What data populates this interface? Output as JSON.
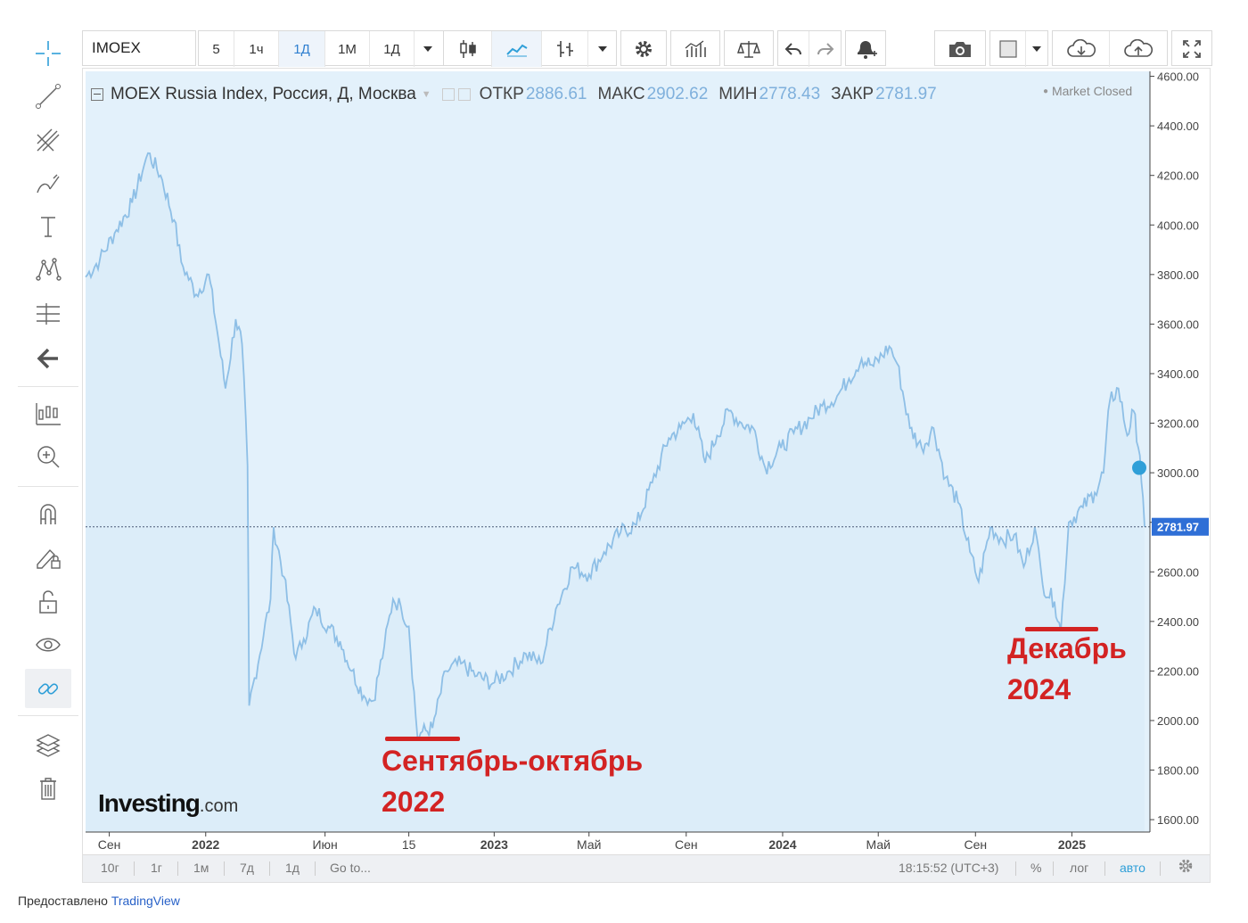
{
  "toolbar": {
    "symbol": "IMOEX",
    "intervals": [
      "5",
      "1ч",
      "1Д",
      "1М",
      "1Д"
    ],
    "active_interval": "1Д"
  },
  "legend": {
    "title": "MOEX Russia Index, Россия, Д, Москва",
    "open_label": "ОТКР",
    "open_value": "2886.61",
    "high_label": "МАКС",
    "high_value": "2902.62",
    "low_label": "МИН",
    "low_value": "2778.43",
    "close_label": "ЗАКР",
    "close_value": "2781.97",
    "market_status": "Market Closed"
  },
  "bottom_bar": {
    "ranges": [
      "10г",
      "1г",
      "1м",
      "7д",
      "1д"
    ],
    "goto": "Go to...",
    "time": "18:15:52 (UTC+3)",
    "percent": "%",
    "log": "лог",
    "auto": "авто"
  },
  "footer": {
    "prefix": "Предоставлено",
    "link": "TradingView"
  },
  "logo": {
    "main": "Investing",
    "suffix": ".com"
  },
  "annotations": [
    {
      "line1": "Сентябрь-октябрь",
      "line2": "2022"
    },
    {
      "line1": "Декабрь",
      "line2": "2024"
    }
  ],
  "colors": {
    "line": "#8ebfe6",
    "area": "#e3f1fb",
    "price_tag": "#2f6fd6",
    "annotation": "#d32323",
    "active": "#2f7fd0"
  },
  "chart_data": {
    "type": "area",
    "series_name": "",
    "x_ticks": [
      "Сен",
      "2022",
      "Июн",
      "15",
      "2023",
      "Май",
      "Сен",
      "2024",
      "Май",
      "Сен",
      "2025"
    ],
    "y_ticks": [
      "4600.00",
      "4400.00",
      "4200.00",
      "4000.00",
      "3800.00",
      "3600.00",
      "3400.00",
      "3200.00",
      "3000.00",
      "2800.00",
      "2600.00",
      "2400.00",
      "2200.00",
      "2000.00",
      "1800.00",
      "1600.00"
    ],
    "ylim": [
      1550,
      4620
    ],
    "last_price": 2781.97,
    "price_tag": "2781.97",
    "points": [
      [
        "2021-08-02",
        3790
      ],
      [
        "2021-08-20",
        3860
      ],
      [
        "2021-09-10",
        3980
      ],
      [
        "2021-09-30",
        4090
      ],
      [
        "2021-10-15",
        4240
      ],
      [
        "2021-10-20",
        4290
      ],
      [
        "2021-11-05",
        4200
      ],
      [
        "2021-11-22",
        4020
      ],
      [
        "2021-12-01",
        3850
      ],
      [
        "2021-12-20",
        3720
      ],
      [
        "2022-01-05",
        3800
      ],
      [
        "2022-01-18",
        3520
      ],
      [
        "2022-01-26",
        3340
      ],
      [
        "2022-02-08",
        3620
      ],
      [
        "2022-02-16",
        3520
      ],
      [
        "2022-02-23",
        3030
      ],
      [
        "2022-02-25",
        2060
      ],
      [
        "2022-03-24",
        2490
      ],
      [
        "2022-03-28",
        2780
      ],
      [
        "2022-04-10",
        2580
      ],
      [
        "2022-04-25",
        2250
      ],
      [
        "2022-05-05",
        2330
      ],
      [
        "2022-05-20",
        2450
      ],
      [
        "2022-06-05",
        2380
      ],
      [
        "2022-06-20",
        2320
      ],
      [
        "2022-07-05",
        2200
      ],
      [
        "2022-07-20",
        2100
      ],
      [
        "2022-08-01",
        2080
      ],
      [
        "2022-08-15",
        2300
      ],
      [
        "2022-08-26",
        2490
      ],
      [
        "2022-09-05",
        2460
      ],
      [
        "2022-09-15",
        2380
      ],
      [
        "2022-09-26",
        1930
      ],
      [
        "2022-09-30",
        1950
      ],
      [
        "2022-10-15",
        1970
      ],
      [
        "2022-11-01",
        2200
      ],
      [
        "2022-11-20",
        2230
      ],
      [
        "2022-12-10",
        2180
      ],
      [
        "2022-12-30",
        2150
      ],
      [
        "2023-01-20",
        2200
      ],
      [
        "2023-02-10",
        2270
      ],
      [
        "2023-03-01",
        2230
      ],
      [
        "2023-03-20",
        2450
      ],
      [
        "2023-04-10",
        2620
      ],
      [
        "2023-05-01",
        2590
      ],
      [
        "2023-05-20",
        2680
      ],
      [
        "2023-06-10",
        2760
      ],
      [
        "2023-06-30",
        2790
      ],
      [
        "2023-07-20",
        2960
      ],
      [
        "2023-08-10",
        3140
      ],
      [
        "2023-08-25",
        3180
      ],
      [
        "2023-09-10",
        3240
      ],
      [
        "2023-09-25",
        3040
      ],
      [
        "2023-10-10",
        3150
      ],
      [
        "2023-10-25",
        3250
      ],
      [
        "2023-11-10",
        3200
      ],
      [
        "2023-11-25",
        3180
      ],
      [
        "2023-12-10",
        3020
      ],
      [
        "2023-12-30",
        3100
      ],
      [
        "2024-01-15",
        3160
      ],
      [
        "2024-02-05",
        3220
      ],
      [
        "2024-02-20",
        3270
      ],
      [
        "2024-03-10",
        3310
      ],
      [
        "2024-03-25",
        3380
      ],
      [
        "2024-04-10",
        3460
      ],
      [
        "2024-04-25",
        3430
      ],
      [
        "2024-05-15",
        3510
      ],
      [
        "2024-05-25",
        3440
      ],
      [
        "2024-06-10",
        3180
      ],
      [
        "2024-06-25",
        3100
      ],
      [
        "2024-07-10",
        3180
      ],
      [
        "2024-07-25",
        2980
      ],
      [
        "2024-08-10",
        2880
      ],
      [
        "2024-08-25",
        2680
      ],
      [
        "2024-09-05",
        2560
      ],
      [
        "2024-09-20",
        2780
      ],
      [
        "2024-10-05",
        2730
      ],
      [
        "2024-10-20",
        2750
      ],
      [
        "2024-11-01",
        2620
      ],
      [
        "2024-11-15",
        2780
      ],
      [
        "2024-11-25",
        2550
      ],
      [
        "2024-12-10",
        2480
      ],
      [
        "2024-12-18",
        2360
      ],
      [
        "2024-12-28",
        2800
      ],
      [
        "2025-01-15",
        2860
      ],
      [
        "2025-01-30",
        2920
      ],
      [
        "2025-02-10",
        3000
      ],
      [
        "2025-02-18",
        3290
      ],
      [
        "2025-03-01",
        3340
      ],
      [
        "2025-03-12",
        3150
      ],
      [
        "2025-03-20",
        3250
      ],
      [
        "2025-03-28",
        3070
      ],
      [
        "2025-04-03",
        2781.97
      ]
    ]
  }
}
